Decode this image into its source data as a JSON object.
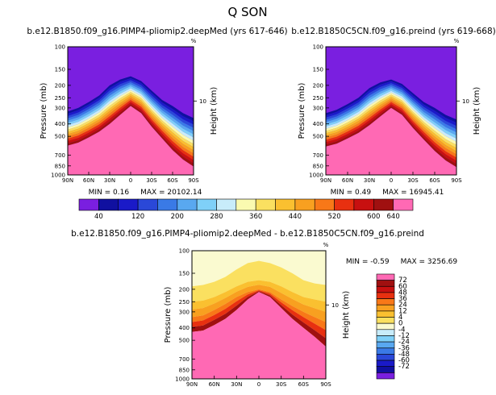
{
  "figure": {
    "title": "Q SON",
    "corner_symbol": "%"
  },
  "chart_data": [
    {
      "type": "contour",
      "title": "b.e12.B1850.f09_g16.PIMP4-pliomip2.deepMed (yrs 617-646)",
      "ylabel": "Pressure (mb)",
      "ylabel_right": "Height (km)",
      "right_ticks": [
        "10"
      ],
      "x_ticks": [
        "90N",
        "60N",
        "30N",
        "0",
        "30S",
        "60S",
        "90S"
      ],
      "y_ticks": [
        100,
        150,
        200,
        250,
        300,
        400,
        500,
        700,
        850,
        1000
      ],
      "ylim": [
        100,
        1000
      ],
      "log_y": true,
      "min_text": "MIN = 0.16",
      "max_text": "MAX = 20102.14",
      "levels": [
        40,
        80,
        120,
        160,
        200,
        240,
        280,
        320,
        360,
        400,
        440,
        480,
        520,
        560,
        600,
        640
      ],
      "latitudes": [
        90,
        75,
        60,
        45,
        30,
        15,
        0,
        -15,
        -30,
        -45,
        -60,
        -75,
        -90
      ],
      "tropopause_mb": [
        320,
        300,
        270,
        240,
        200,
        180,
        170,
        185,
        220,
        260,
        290,
        330,
        360
      ],
      "surface_mb": [
        590,
        560,
        510,
        460,
        400,
        340,
        290,
        330,
        420,
        520,
        640,
        760,
        860
      ]
    },
    {
      "type": "contour",
      "title": "b.e12.B1850C5CN.f09_g16.preind (yrs 619-668)",
      "ylabel": "Pressure (mb)",
      "ylabel_right": "Height (km)",
      "right_ticks": [
        "10"
      ],
      "x_ticks": [
        "90N",
        "60N",
        "30N",
        "0",
        "30S",
        "60S",
        "90S"
      ],
      "y_ticks": [
        100,
        150,
        200,
        250,
        300,
        400,
        500,
        700,
        850,
        1000
      ],
      "ylim": [
        100,
        1000
      ],
      "log_y": true,
      "min_text": "MIN = 0.49",
      "max_text": "MAX = 16945.41",
      "levels": [
        40,
        80,
        120,
        160,
        200,
        240,
        280,
        320,
        360,
        400,
        440,
        480,
        520,
        560,
        600,
        640
      ],
      "latitudes": [
        90,
        75,
        60,
        45,
        30,
        15,
        0,
        -15,
        -30,
        -45,
        -60,
        -75,
        -90
      ],
      "tropopause_mb": [
        330,
        310,
        280,
        250,
        210,
        190,
        180,
        195,
        230,
        270,
        300,
        340,
        370
      ],
      "surface_mb": [
        600,
        570,
        520,
        470,
        410,
        350,
        300,
        340,
        430,
        530,
        650,
        770,
        870
      ]
    },
    {
      "type": "contour",
      "title": "b.e12.B1850.f09_g16.PIMP4-pliomip2.deepMed - b.e12.B1850C5CN.f09_g16.preind",
      "ylabel": "Pressure (mb)",
      "ylabel_right": "Height (km)",
      "right_ticks": [
        "10"
      ],
      "x_ticks": [
        "90N",
        "60N",
        "30N",
        "0",
        "30S",
        "60S",
        "90S"
      ],
      "y_ticks": [
        100,
        150,
        200,
        250,
        300,
        400,
        500,
        700,
        850,
        1000
      ],
      "ylim": [
        100,
        1000
      ],
      "log_y": true,
      "min_text": "MIN = -0.59",
      "max_text": "MAX = 3256.69",
      "levels": [
        -72,
        -60,
        -48,
        -36,
        -24,
        -12,
        -4,
        0,
        4,
        12,
        24,
        36,
        48,
        60,
        72
      ],
      "latitudes": [
        90,
        75,
        60,
        45,
        30,
        15,
        0,
        -15,
        -30,
        -45,
        -60,
        -75,
        -90
      ],
      "yellow_top_mb": [
        190,
        185,
        175,
        160,
        140,
        125,
        120,
        125,
        135,
        150,
        170,
        180,
        185
      ],
      "orange_top_mb": [
        250,
        245,
        230,
        210,
        190,
        175,
        170,
        175,
        190,
        210,
        230,
        240,
        250
      ],
      "red_top_mb": [
        330,
        320,
        290,
        260,
        230,
        210,
        200,
        210,
        240,
        270,
        300,
        330,
        360
      ],
      "surface_mb": [
        430,
        420,
        380,
        340,
        290,
        240,
        210,
        230,
        280,
        340,
        400,
        470,
        560
      ]
    }
  ],
  "colorbar_top": {
    "labels": [
      "40",
      "120",
      "200",
      "280",
      "360",
      "440",
      "520",
      "600"
    ],
    "labels_tail": [
      "640"
    ],
    "colors": [
      "#7a1fe0",
      "#1010a0",
      "#1a1ac8",
      "#2a48d8",
      "#3a7ae6",
      "#59a8f0",
      "#7fd0f8",
      "#c8ecfa",
      "#fafab0",
      "#fae060",
      "#fac030",
      "#f8a020",
      "#f87818",
      "#e83010",
      "#c81010",
      "#a01010",
      "#ff69b4"
    ]
  },
  "colorbar_diff": {
    "labels": [
      "72",
      "60",
      "48",
      "36",
      "24",
      "12",
      "4",
      "0",
      "-4",
      "-12",
      "-24",
      "-36",
      "-48",
      "-60",
      "-72"
    ],
    "colors": [
      "#ff69b4",
      "#a01010",
      "#c81010",
      "#e83010",
      "#f87818",
      "#f8a020",
      "#fac030",
      "#fae060",
      "#fafad0",
      "#c8ecfa",
      "#7fd0f8",
      "#59a8f0",
      "#3a7ae6",
      "#2a48d8",
      "#1a1ac8",
      "#1010a0",
      "#7a1fe0"
    ]
  }
}
